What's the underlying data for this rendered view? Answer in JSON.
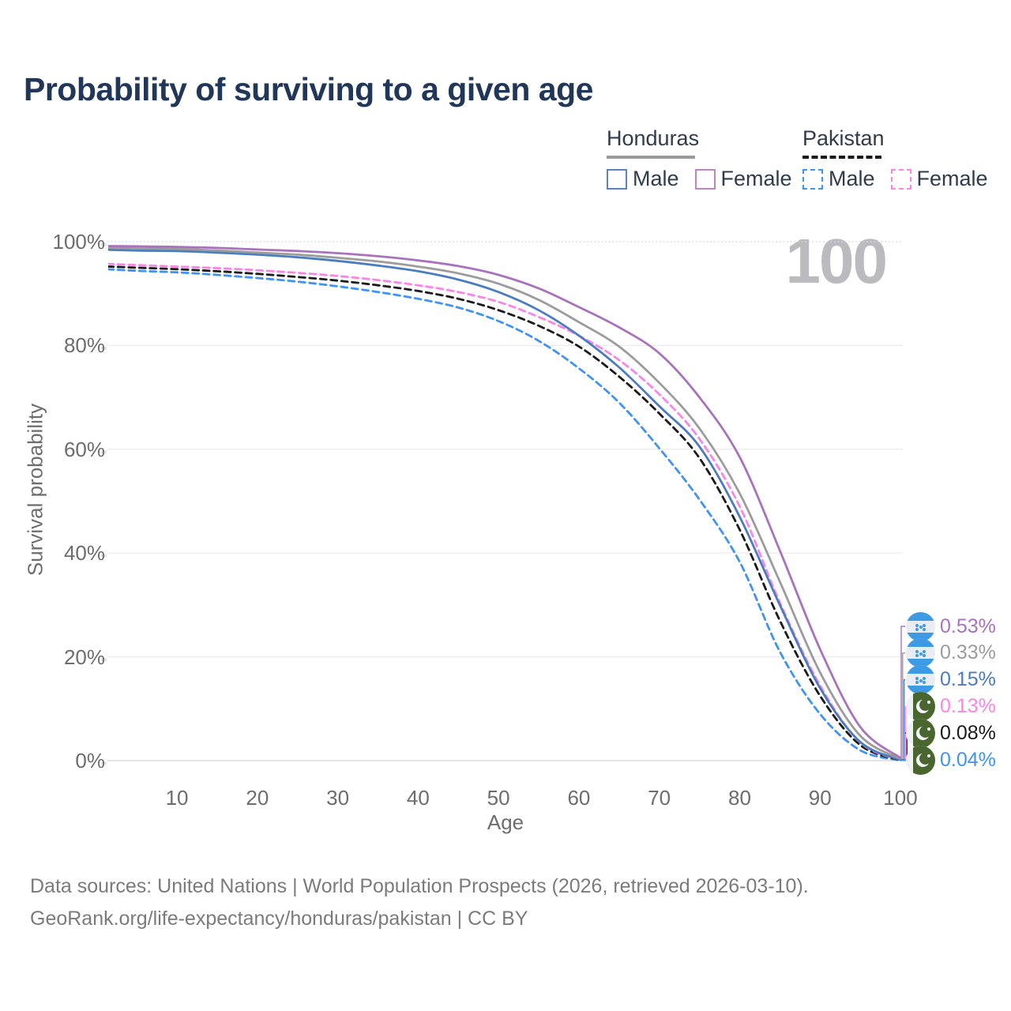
{
  "title": "Probability of surviving to a given age",
  "watermark": "100",
  "legend": {
    "groups": [
      {
        "label": "Honduras",
        "underline_style": "solid",
        "underline_color": "#9b9b9b",
        "items": [
          {
            "label": "Male",
            "color": "#5b84bb",
            "dash": false
          },
          {
            "label": "Female",
            "color": "#bd85c2",
            "dash": false
          }
        ]
      },
      {
        "label": "Pakistan",
        "underline_style": "dashed",
        "underline_color": "#1a1a1a",
        "items": [
          {
            "label": "Male",
            "color": "#3f93f7",
            "dash": true
          },
          {
            "label": "Female",
            "color": "#fb85e6",
            "dash": true
          }
        ]
      }
    ]
  },
  "axes": {
    "y_title": "Survival probability",
    "x_title": "Age",
    "y_ticks": [
      "100%",
      "80%",
      "60%",
      "40%",
      "20%",
      "0%"
    ],
    "y_tick_values": [
      100,
      80,
      60,
      40,
      20,
      0
    ],
    "x_ticks": [
      10,
      20,
      30,
      40,
      50,
      60,
      70,
      80,
      90,
      100
    ]
  },
  "chart_data": {
    "type": "line",
    "title": "Probability of surviving to a given age",
    "xlabel": "Age",
    "ylabel": "Survival probability",
    "xlim": [
      0,
      100
    ],
    "ylim": [
      0,
      100
    ],
    "y_unit": "%",
    "grid": "horizontal",
    "legend_position": "top-right",
    "x": [
      0,
      5,
      10,
      15,
      20,
      25,
      30,
      35,
      40,
      45,
      50,
      55,
      60,
      65,
      70,
      75,
      80,
      85,
      90,
      95,
      100
    ],
    "series": [
      {
        "name": "Honduras — Female",
        "country": "Honduras",
        "sex": "female",
        "line_style": "solid",
        "color": "#a873bc",
        "end_label": "0.53%",
        "values": [
          99.2,
          99.1,
          99.0,
          98.8,
          98.5,
          98.2,
          97.8,
          97.2,
          96.4,
          95.3,
          93.6,
          91.0,
          87.4,
          83.5,
          78.5,
          70.0,
          58.5,
          40.5,
          21.5,
          6.5,
          0.53
        ]
      },
      {
        "name": "Honduras — Both sexes",
        "country": "Honduras",
        "sex": "both",
        "line_style": "solid",
        "color": "#9c9c9c",
        "end_label": "0.33%",
        "values": [
          98.9,
          98.7,
          98.6,
          98.3,
          97.9,
          97.5,
          96.9,
          96.2,
          95.2,
          93.9,
          91.9,
          88.8,
          84.5,
          79.8,
          72.8,
          64.0,
          51.5,
          34.5,
          17.0,
          4.8,
          0.33
        ]
      },
      {
        "name": "Honduras — Male",
        "country": "Honduras",
        "sex": "male",
        "line_style": "solid",
        "color": "#4a7cc0",
        "end_label": "0.15%",
        "values": [
          98.5,
          98.3,
          98.2,
          97.9,
          97.5,
          97.0,
          96.3,
          95.4,
          94.3,
          92.7,
          90.3,
          86.8,
          81.9,
          75.8,
          68.3,
          60.5,
          47.0,
          30.0,
          14.0,
          3.6,
          0.15
        ]
      },
      {
        "name": "Pakistan — Female",
        "country": "Pakistan",
        "sex": "female",
        "line_style": "dashed",
        "color": "#fb85e6",
        "end_label": "0.13%",
        "values": [
          95.8,
          95.5,
          95.2,
          94.9,
          94.5,
          94.0,
          93.4,
          92.6,
          91.6,
          90.3,
          88.4,
          85.5,
          81.9,
          77.2,
          70.6,
          62.0,
          49.0,
          30.5,
          14.5,
          3.5,
          0.13
        ]
      },
      {
        "name": "Pakistan — Both sexes",
        "country": "Pakistan",
        "sex": "both",
        "line_style": "dashed",
        "color": "#1a1a1a",
        "end_label": "0.08%",
        "values": [
          95.3,
          95.0,
          94.7,
          94.3,
          93.8,
          93.2,
          92.5,
          91.6,
          90.5,
          89.0,
          86.8,
          83.8,
          79.8,
          74.0,
          66.9,
          58.3,
          44.5,
          27.0,
          12.5,
          3.0,
          0.08
        ]
      },
      {
        "name": "Pakistan — Male",
        "country": "Pakistan",
        "sex": "male",
        "line_style": "dashed",
        "color": "#3f93f7",
        "end_label": "0.04%",
        "values": [
          94.8,
          94.4,
          94.1,
          93.6,
          93.0,
          92.3,
          91.4,
          90.3,
          89.0,
          87.3,
          84.7,
          80.9,
          75.6,
          69.0,
          60.2,
          50.3,
          38.3,
          21.0,
          9.0,
          2.0,
          0.04
        ]
      }
    ]
  },
  "footer": {
    "line1": "Data sources: United Nations | World Population Prospects (2026, retrieved 2026-03-10).",
    "line2": "GeoRank.org/life-expectancy/honduras/pakistan | CC BY"
  }
}
